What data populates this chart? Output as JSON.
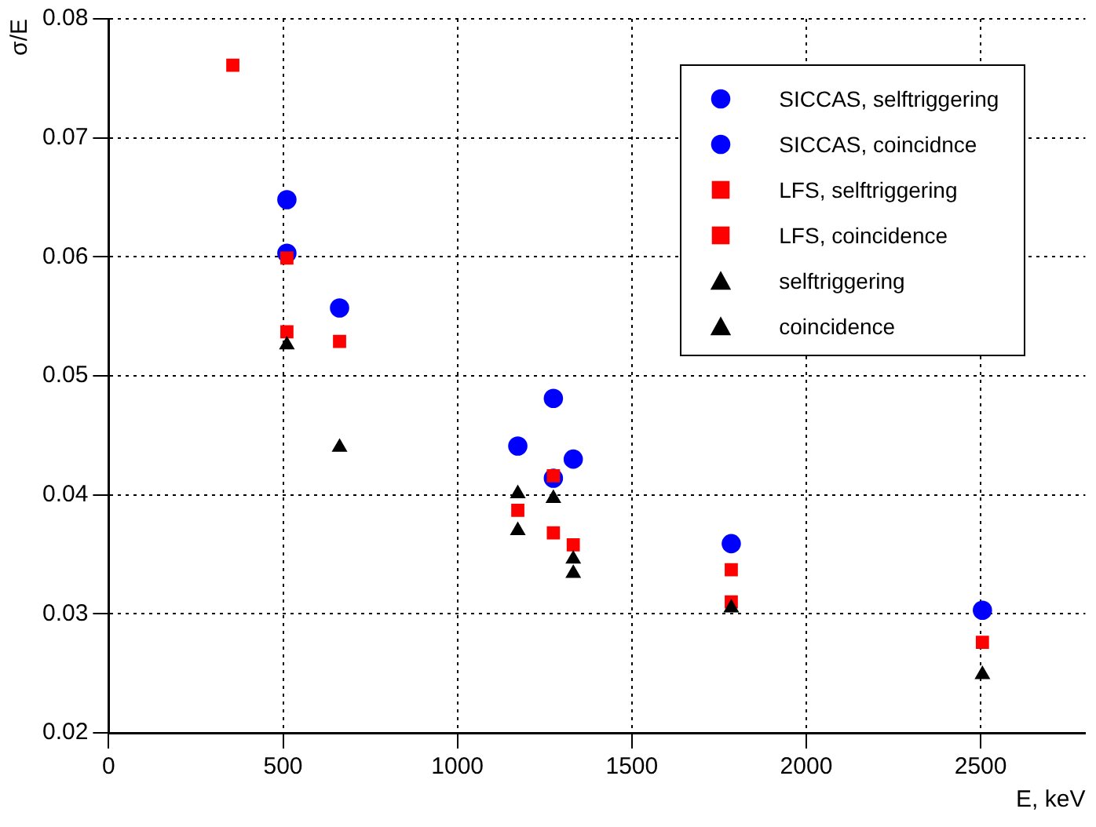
{
  "chart_data": {
    "type": "scatter",
    "xlabel": "E, keV",
    "ylabel": "σ/E",
    "xlim": [
      0,
      2800
    ],
    "xticks": [
      0,
      500,
      1000,
      1500,
      2000,
      2500
    ],
    "ylim": [
      0.02,
      0.08
    ],
    "yticks": [
      0.02,
      0.03,
      0.04,
      0.05,
      0.06,
      0.07,
      0.08
    ],
    "grid": true,
    "legend": "top right",
    "series": [
      {
        "name": "SICCAS, selftriggering",
        "color": "#0000ff",
        "marker": "circle",
        "x": [
          511,
          662,
          1173,
          1275,
          1332,
          2505
        ],
        "values": [
          0.0648,
          0.0557,
          0.0441,
          0.0414,
          0.043,
          0.0303
        ]
      },
      {
        "name": "SICCAS, coincidnce",
        "color": "#0000ff",
        "marker": "circle",
        "x": [
          511,
          1275,
          1785
        ],
        "values": [
          0.0603,
          0.0481,
          0.0359
        ]
      },
      {
        "name": "LFS, selftriggering",
        "color": "#ff0000",
        "marker": "square",
        "x": [
          356,
          511,
          662,
          1173,
          1275,
          1332,
          1785,
          2505
        ],
        "values": [
          0.0761,
          0.0599,
          0.0529,
          0.0387,
          0.0368,
          0.0358,
          0.0337,
          0.0276
        ]
      },
      {
        "name": "LFS, coincidence",
        "color": "#ff0000",
        "marker": "square",
        "x": [
          511,
          1275,
          1785
        ],
        "values": [
          0.0537,
          0.0416,
          0.031
        ]
      },
      {
        "name": "selftriggering",
        "color": "#000000",
        "marker": "triangle",
        "x": [
          662,
          1173,
          1332,
          2505
        ],
        "values": [
          0.044,
          0.037,
          0.0334,
          0.0249
        ]
      },
      {
        "name": "coincidence",
        "color": "#000000",
        "marker": "triangle",
        "x": [
          511,
          1173,
          1275,
          1332,
          1785
        ],
        "values": [
          0.0526,
          0.0401,
          0.0397,
          0.0346,
          0.0305
        ]
      }
    ]
  }
}
